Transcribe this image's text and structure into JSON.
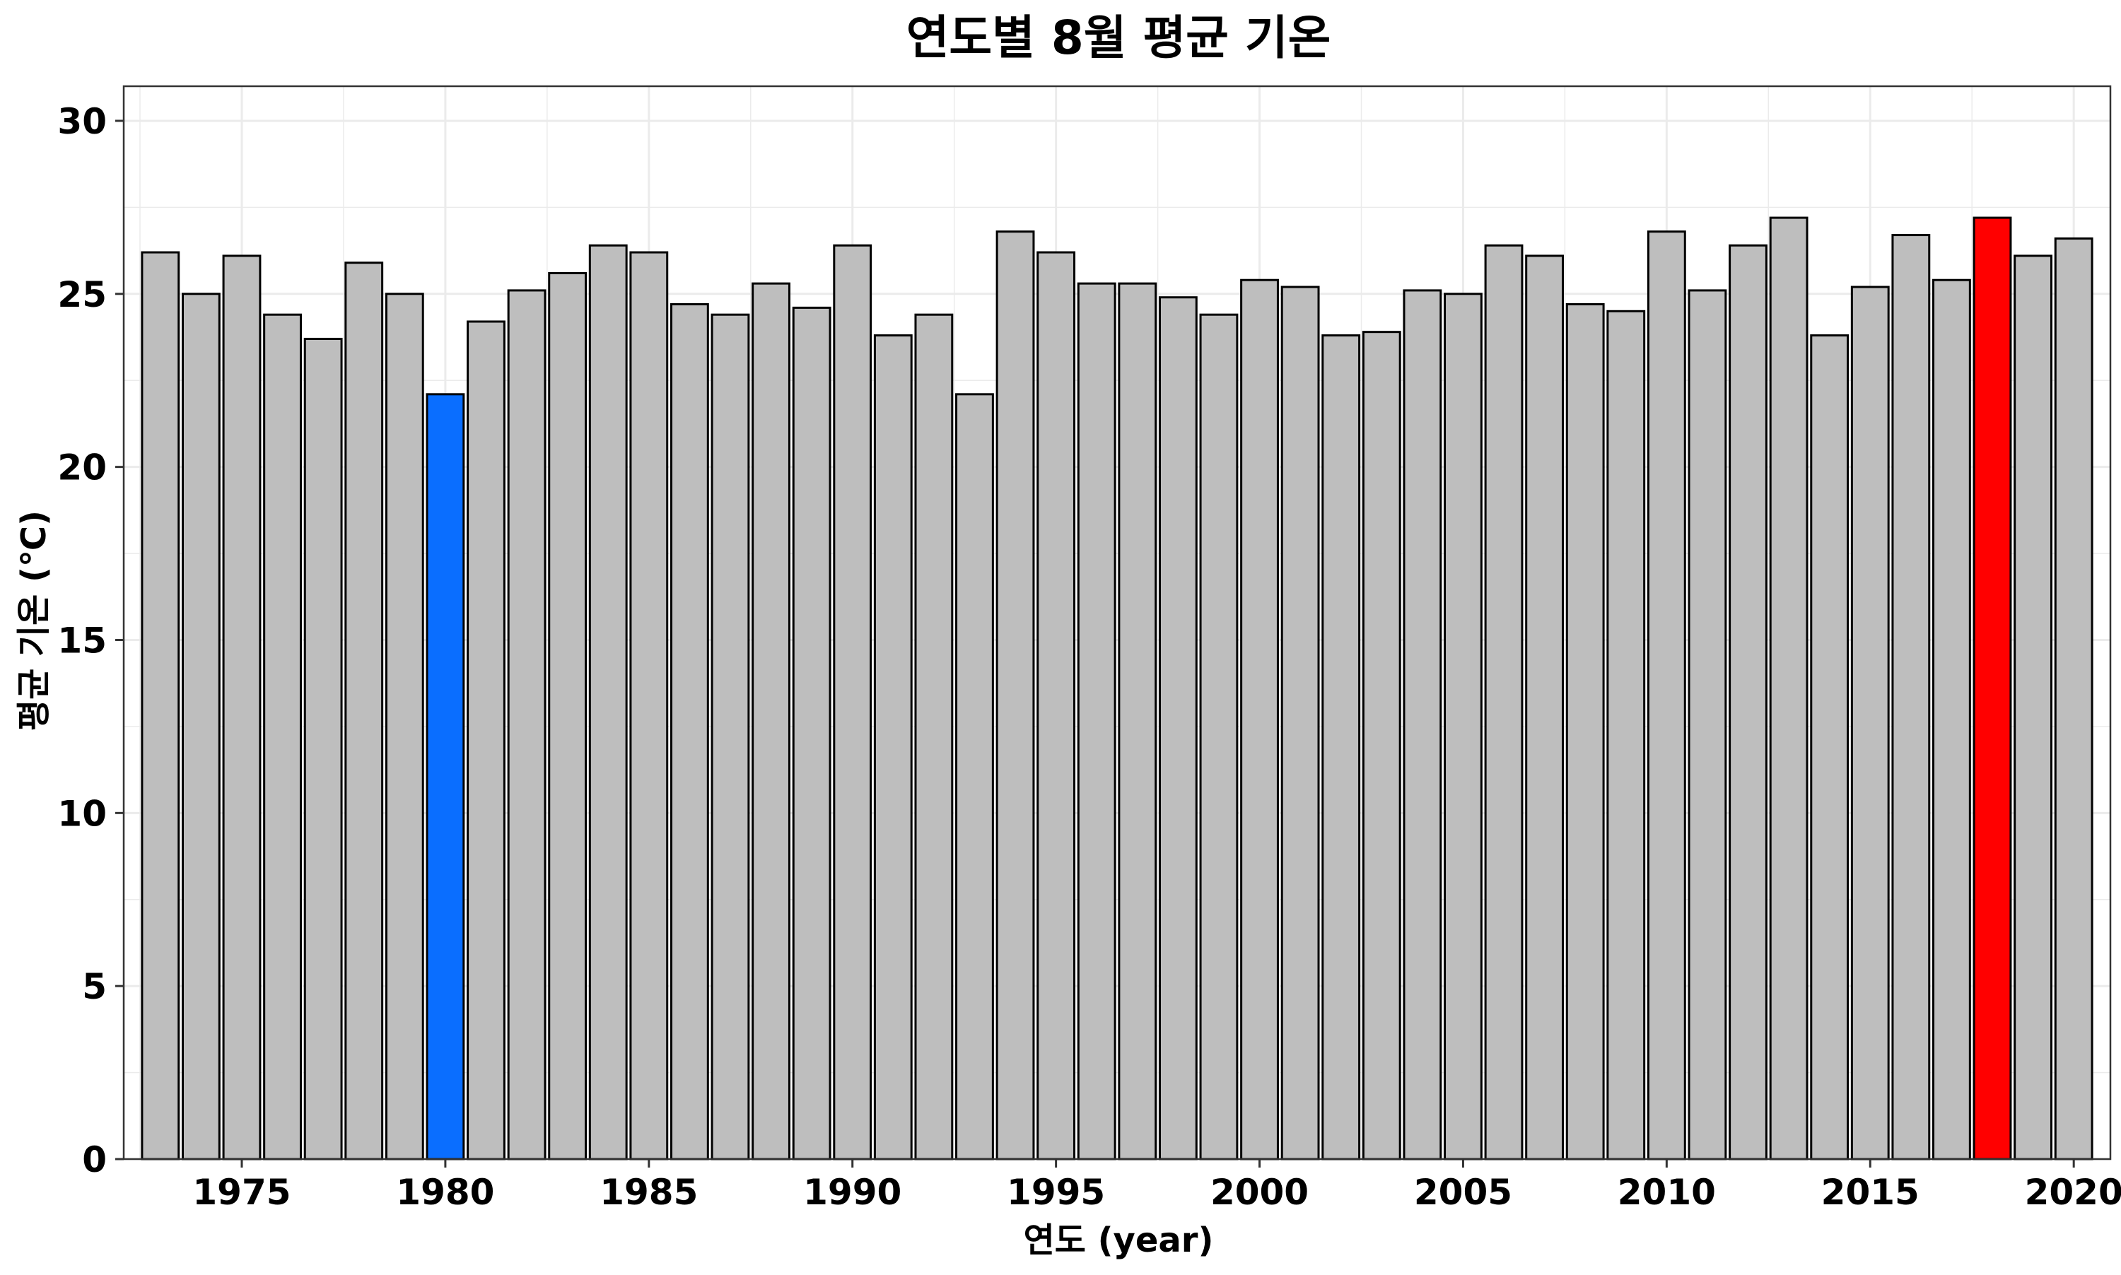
{
  "chart_data": {
    "type": "bar",
    "title": "연도별 8월 평균 기온",
    "xlabel": "연도 (year)",
    "ylabel": "평균 기온 (℃)",
    "x": [
      1973,
      1974,
      1975,
      1976,
      1977,
      1978,
      1979,
      1980,
      1981,
      1982,
      1983,
      1984,
      1985,
      1986,
      1987,
      1988,
      1989,
      1990,
      1991,
      1992,
      1993,
      1994,
      1995,
      1996,
      1997,
      1998,
      1999,
      2000,
      2001,
      2002,
      2003,
      2004,
      2005,
      2006,
      2007,
      2008,
      2009,
      2010,
      2011,
      2012,
      2013,
      2014,
      2015,
      2016,
      2017,
      2018,
      2019,
      2020
    ],
    "values": [
      26.2,
      25.0,
      26.1,
      24.4,
      23.7,
      25.9,
      25.0,
      22.1,
      24.2,
      25.1,
      25.6,
      26.4,
      26.2,
      24.7,
      24.4,
      25.3,
      24.6,
      26.4,
      23.8,
      24.4,
      22.1,
      26.8,
      26.2,
      25.3,
      25.3,
      24.9,
      24.4,
      25.4,
      25.2,
      23.8,
      23.9,
      25.1,
      25.0,
      26.4,
      26.1,
      24.7,
      24.5,
      26.8,
      25.1,
      26.4,
      27.2,
      23.8,
      25.2,
      26.7,
      25.4,
      27.2,
      26.1,
      26.6
    ],
    "ylim": [
      0,
      31
    ],
    "xlim": [
      1972.1,
      2020.9
    ],
    "yticks": [
      0,
      5,
      10,
      15,
      20,
      25,
      30
    ],
    "yticklabels": [
      "0",
      "5",
      "10",
      "15",
      "20",
      "25",
      "30"
    ],
    "xticks": [
      1975,
      1980,
      1985,
      1990,
      1995,
      2000,
      2005,
      2010,
      2015,
      2020
    ],
    "xticklabels": [
      "1975",
      "1980",
      "1985",
      "1990",
      "1995",
      "2000",
      "2005",
      "2010",
      "2015",
      "2020"
    ],
    "grid": true,
    "colors": {
      "default": "#bebebe",
      "lowest": "#0a6eff",
      "highest": "#ff0000",
      "outline": "#000000",
      "grid": "#ebebeb"
    },
    "highlight": {
      "lowest_year": 1980,
      "highest_year": 2018
    }
  }
}
